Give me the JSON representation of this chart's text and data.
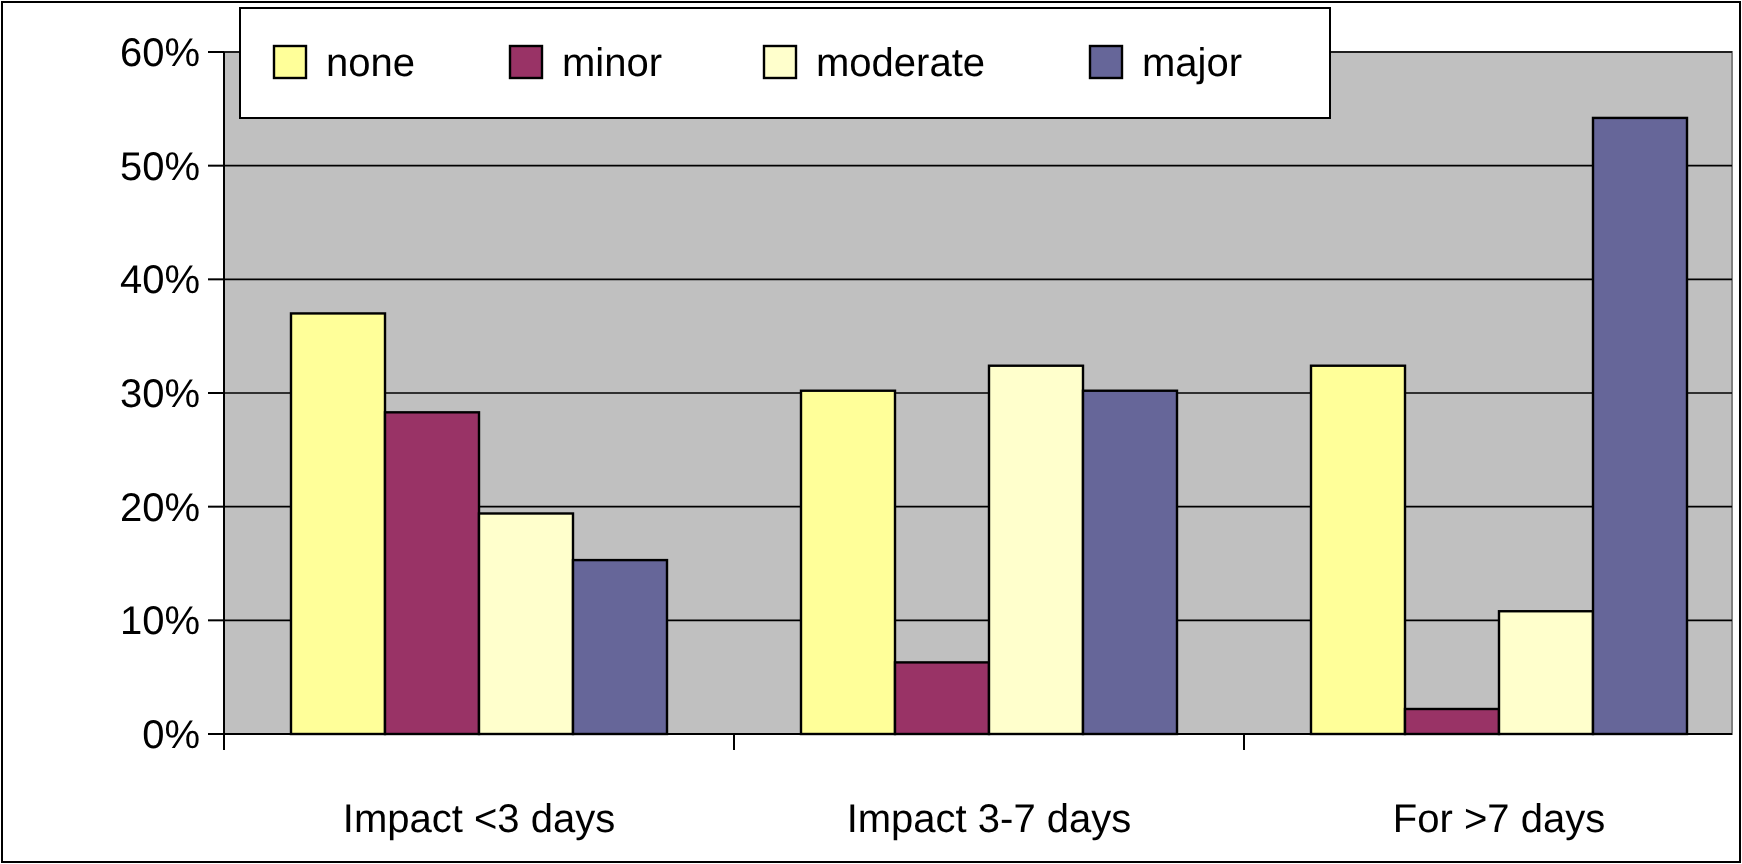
{
  "chart_data": {
    "type": "bar",
    "categories": [
      "Impact <3 days",
      "Impact 3-7 days",
      "For >7 days"
    ],
    "series": [
      {
        "name": "none",
        "color": "#ffff99",
        "values": [
          37,
          30.2,
          32.4
        ]
      },
      {
        "name": "minor",
        "color": "#993366",
        "values": [
          28.3,
          6.3,
          2.2
        ]
      },
      {
        "name": "moderate",
        "color": "#ffffcc",
        "values": [
          19.4,
          32.4,
          10.8
        ]
      },
      {
        "name": "major",
        "color": "#666699",
        "values": [
          15.3,
          30.2,
          54.2
        ]
      }
    ],
    "ylim": [
      0,
      60
    ],
    "yticks": [
      {
        "value": 0,
        "label": "0%"
      },
      {
        "value": 10,
        "label": "10%"
      },
      {
        "value": 20,
        "label": "20%"
      },
      {
        "value": 30,
        "label": "30%"
      },
      {
        "value": 40,
        "label": "40%"
      },
      {
        "value": 50,
        "label": "50%"
      },
      {
        "value": 60,
        "label": "60%"
      }
    ],
    "grid": "y",
    "legend": "top left"
  }
}
